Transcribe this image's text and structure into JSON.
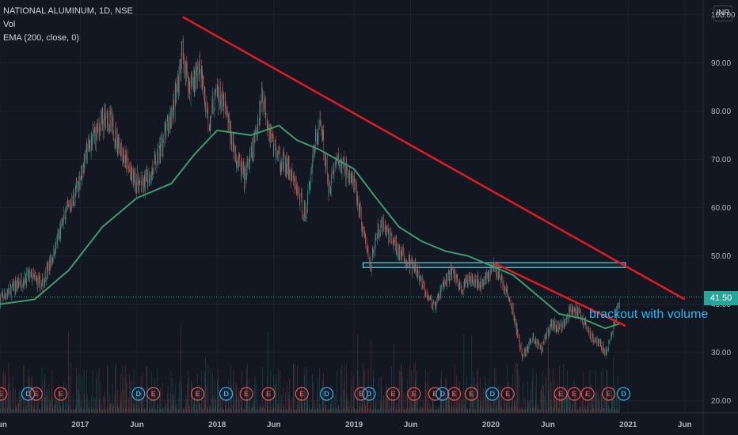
{
  "legend": {
    "title": "NATIONAL ALUMINUM, 1D, NSE",
    "vol": "Vol",
    "ema": "EMA (200, close, 0)"
  },
  "currency": "INR",
  "last_price": "41.50",
  "annotation": "brackout with volume",
  "colors": {
    "background": "#131722",
    "up": "#26a69a",
    "down": "#ef5350",
    "ema": "#3f9b6e",
    "trendline": "#e01b24",
    "box": "#5ad3e6"
  },
  "chart_data": {
    "type": "line",
    "title": "NATIONAL ALUMINUM, 1D, NSE",
    "ylim": [
      17.5,
      103
    ],
    "y_ticks": [
      "100.00",
      "90.00",
      "80.00",
      "70.00",
      "60.00",
      "50.00",
      "40.00",
      "30.00",
      "20.00"
    ],
    "y_tick_values": [
      100,
      90,
      80,
      70,
      60,
      50,
      40,
      30,
      20
    ],
    "x_ticks": [
      "Jun",
      "2017",
      "Jun",
      "2018",
      "Jun",
      "2019",
      "Jun",
      "2020",
      "Jun",
      "2021",
      "Jun"
    ],
    "x_tick_dates": [
      "2016-06-01",
      "2017-01-01",
      "2017-06-01",
      "2018-01-01",
      "2018-06-01",
      "2019-01-01",
      "2019-06-01",
      "2020-01-01",
      "2020-06-01",
      "2021-01-01",
      "2021-06-01"
    ],
    "x_range": [
      "2016-06-01",
      "2021-07-20"
    ],
    "series": [
      {
        "name": "Price",
        "points": [
          [
            "2016-06-01",
            41
          ],
          [
            "2016-07-15",
            44
          ],
          [
            "2016-08-20",
            46
          ],
          [
            "2016-09-20",
            44
          ],
          [
            "2016-10-20",
            50
          ],
          [
            "2016-11-20",
            58
          ],
          [
            "2016-12-20",
            63
          ],
          [
            "2017-01-20",
            72
          ],
          [
            "2017-02-15",
            76
          ],
          [
            "2017-03-15",
            79
          ],
          [
            "2017-04-15",
            73
          ],
          [
            "2017-05-15",
            67
          ],
          [
            "2017-06-15",
            64
          ],
          [
            "2017-07-15",
            68
          ],
          [
            "2017-08-15",
            75
          ],
          [
            "2017-09-10",
            82
          ],
          [
            "2017-10-01",
            92
          ],
          [
            "2017-10-20",
            85
          ],
          [
            "2017-11-15",
            89
          ],
          [
            "2017-12-10",
            78
          ],
          [
            "2018-01-01",
            84
          ],
          [
            "2018-01-20",
            81
          ],
          [
            "2018-02-15",
            72
          ],
          [
            "2018-03-15",
            66
          ],
          [
            "2018-04-10",
            73
          ],
          [
            "2018-05-01",
            84
          ],
          [
            "2018-05-20",
            76
          ],
          [
            "2018-06-15",
            70
          ],
          [
            "2018-07-10",
            68
          ],
          [
            "2018-08-05",
            63
          ],
          [
            "2018-08-25",
            58
          ],
          [
            "2018-09-15",
            72
          ],
          [
            "2018-10-05",
            78
          ],
          [
            "2018-10-25",
            64
          ],
          [
            "2018-11-15",
            70
          ],
          [
            "2018-12-10",
            68
          ],
          [
            "2019-01-05",
            64
          ],
          [
            "2019-01-25",
            55
          ],
          [
            "2019-02-15",
            48
          ],
          [
            "2019-03-05",
            55
          ],
          [
            "2019-03-25",
            56
          ],
          [
            "2019-04-20",
            52
          ],
          [
            "2019-05-20",
            49
          ],
          [
            "2019-06-15",
            47
          ],
          [
            "2019-07-10",
            43
          ],
          [
            "2019-08-05",
            39
          ],
          [
            "2019-08-25",
            44
          ],
          [
            "2019-09-20",
            47
          ],
          [
            "2019-10-15",
            43
          ],
          [
            "2019-11-10",
            46
          ],
          [
            "2019-12-05",
            44
          ],
          [
            "2020-01-10",
            48
          ],
          [
            "2020-02-10",
            43
          ],
          [
            "2020-03-01",
            38
          ],
          [
            "2020-03-25",
            29
          ],
          [
            "2020-04-20",
            33
          ],
          [
            "2020-05-15",
            31
          ],
          [
            "2020-06-10",
            36
          ],
          [
            "2020-07-05",
            35
          ],
          [
            "2020-08-01",
            39
          ],
          [
            "2020-08-25",
            38
          ],
          [
            "2020-09-20",
            34
          ],
          [
            "2020-10-15",
            32
          ],
          [
            "2020-11-05",
            30
          ],
          [
            "2020-11-25",
            36
          ],
          [
            "2020-12-10",
            41.5
          ]
        ]
      },
      {
        "name": "EMA (200, close, 0)",
        "points": [
          [
            "2016-06-01",
            40
          ],
          [
            "2016-09-01",
            41
          ],
          [
            "2016-12-01",
            47
          ],
          [
            "2017-03-01",
            56
          ],
          [
            "2017-06-01",
            62
          ],
          [
            "2017-09-01",
            65
          ],
          [
            "2017-11-01",
            71
          ],
          [
            "2018-01-01",
            76
          ],
          [
            "2018-04-01",
            75
          ],
          [
            "2018-06-15",
            77
          ],
          [
            "2018-08-01",
            74
          ],
          [
            "2018-10-01",
            72
          ],
          [
            "2019-01-01",
            68
          ],
          [
            "2019-03-01",
            62
          ],
          [
            "2019-05-01",
            56
          ],
          [
            "2019-07-01",
            53
          ],
          [
            "2019-09-01",
            51
          ],
          [
            "2019-11-01",
            50
          ],
          [
            "2020-01-01",
            48
          ],
          [
            "2020-03-01",
            46
          ],
          [
            "2020-05-01",
            42
          ],
          [
            "2020-07-01",
            38
          ],
          [
            "2020-09-01",
            37
          ],
          [
            "2020-11-01",
            35
          ],
          [
            "2020-12-10",
            36
          ]
        ]
      }
    ],
    "trendlines": [
      {
        "from": [
          "2017-10-01",
          99.5
        ],
        "to": [
          "2021-06-01",
          41
        ]
      },
      {
        "from": [
          "2020-01-10",
          48.5
        ],
        "to": [
          "2020-12-25",
          35.5
        ]
      }
    ],
    "zone": {
      "from": "2019-01-25",
      "to": "2020-12-25",
      "low": 47.6,
      "high": 48.6
    },
    "events": [
      {
        "label": "E",
        "date": "2016-06-03"
      },
      {
        "label": "D",
        "date": "2016-08-15"
      },
      {
        "label": "E",
        "date": "2016-09-05"
      },
      {
        "label": "E",
        "date": "2016-11-10"
      },
      {
        "label": "D",
        "date": "2017-06-05"
      },
      {
        "label": "E",
        "date": "2017-07-15"
      },
      {
        "label": "E",
        "date": "2017-11-10"
      },
      {
        "label": "D",
        "date": "2018-01-25"
      },
      {
        "label": "E",
        "date": "2018-03-20"
      },
      {
        "label": "E",
        "date": "2018-05-18"
      },
      {
        "label": "E",
        "date": "2018-08-15"
      },
      {
        "label": "D",
        "date": "2018-10-20"
      },
      {
        "label": "E",
        "date": "2019-01-20"
      },
      {
        "label": "D",
        "date": "2019-02-10"
      },
      {
        "label": "E",
        "date": "2019-04-15"
      },
      {
        "label": "E",
        "date": "2019-06-10"
      },
      {
        "label": "E",
        "date": "2019-08-05"
      },
      {
        "label": "D",
        "date": "2019-08-25"
      },
      {
        "label": "E",
        "date": "2019-09-25"
      },
      {
        "label": "E",
        "date": "2019-11-10"
      },
      {
        "label": "D",
        "date": "2020-01-05"
      },
      {
        "label": "E",
        "date": "2020-02-15"
      },
      {
        "label": "E",
        "date": "2020-07-05"
      },
      {
        "label": "E",
        "date": "2020-08-10"
      },
      {
        "label": "E",
        "date": "2020-09-15"
      },
      {
        "label": "E",
        "date": "2020-11-10"
      },
      {
        "label": "D",
        "date": "2020-12-20"
      }
    ]
  }
}
